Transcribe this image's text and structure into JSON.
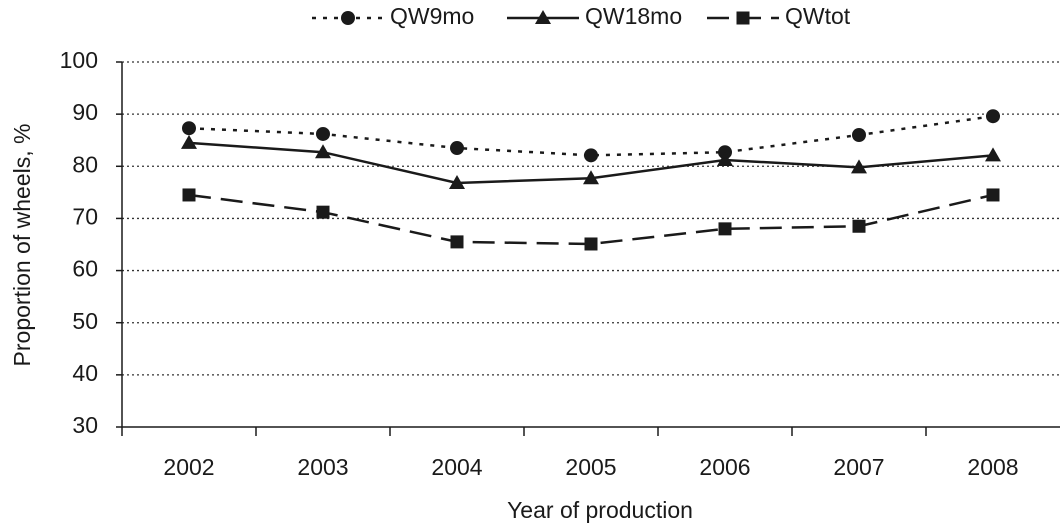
{
  "chart_data": {
    "type": "line",
    "x_label": "Year of production",
    "y_label": "Proportion of wheels, %",
    "categories": [
      "2002",
      "2003",
      "2004",
      "2005",
      "2006",
      "2007",
      "2008"
    ],
    "series": [
      {
        "name": "QW9mo",
        "color": "#1a1a1a",
        "marker": "circle",
        "dash": "dotted",
        "values": [
          87.3,
          86.2,
          83.5,
          82.1,
          82.7,
          86.0,
          89.6
        ]
      },
      {
        "name": "QW18mo",
        "color": "#1a1a1a",
        "marker": "triangle",
        "dash": "solid",
        "values": [
          84.5,
          82.7,
          76.8,
          77.7,
          81.2,
          79.8,
          82.1
        ]
      },
      {
        "name": "QWtot",
        "color": "#1a1a1a",
        "marker": "square",
        "dash": "dashed",
        "values": [
          74.5,
          71.2,
          65.5,
          65.1,
          68.0,
          68.5,
          74.5
        ]
      }
    ],
    "ylim": [
      30,
      100
    ],
    "yticks": [
      30,
      40,
      50,
      60,
      70,
      80,
      90,
      100
    ],
    "grid": true,
    "legend": "top"
  }
}
